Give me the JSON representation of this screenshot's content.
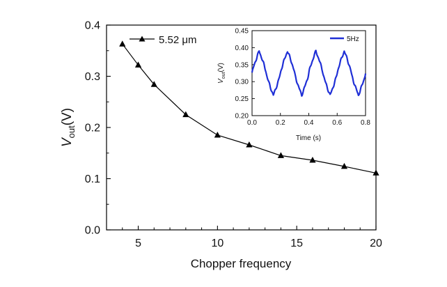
{
  "chart_data": [
    {
      "type": "line",
      "xlabel": "Chopper frequency",
      "ylabel_main": "V",
      "ylabel_sub": "out",
      "ylabel_tail": "(V)",
      "xlim": [
        3,
        20
      ],
      "ylim": [
        0.0,
        0.4
      ],
      "xticks": [
        "5",
        "10",
        "15",
        "20"
      ],
      "yticks": [
        "0.0",
        "0.1",
        "0.2",
        "0.3",
        "0.4"
      ],
      "legend": "top-left",
      "grid": false,
      "series": [
        {
          "name": "5.52 μm",
          "color": "#000000",
          "marker": "triangle",
          "x": [
            4,
            5,
            6,
            8,
            10,
            12,
            14,
            16,
            18,
            20
          ],
          "y": [
            0.363,
            0.322,
            0.284,
            0.225,
            0.185,
            0.166,
            0.145,
            0.136,
            0.124,
            0.111
          ]
        }
      ]
    },
    {
      "type": "line",
      "inset": true,
      "xlabel": "Time (s)",
      "ylabel_main": "V",
      "ylabel_sub": "out",
      "ylabel_tail": "(V)",
      "xlim": [
        0.0,
        0.8
      ],
      "ylim": [
        0.2,
        0.45
      ],
      "xticks": [
        "0.0",
        "0.2",
        "0.4",
        "0.6",
        "0.8"
      ],
      "yticks": [
        "0.20",
        "0.25",
        "0.30",
        "0.35",
        "0.40",
        "0.45"
      ],
      "legend": "top-right",
      "grid": false,
      "series": [
        {
          "name": "5Hz",
          "color": "#1f2fd6",
          "frequency_hz": 5,
          "max": 0.39,
          "min": 0.26,
          "first_peak_s": 0.05
        }
      ]
    }
  ]
}
